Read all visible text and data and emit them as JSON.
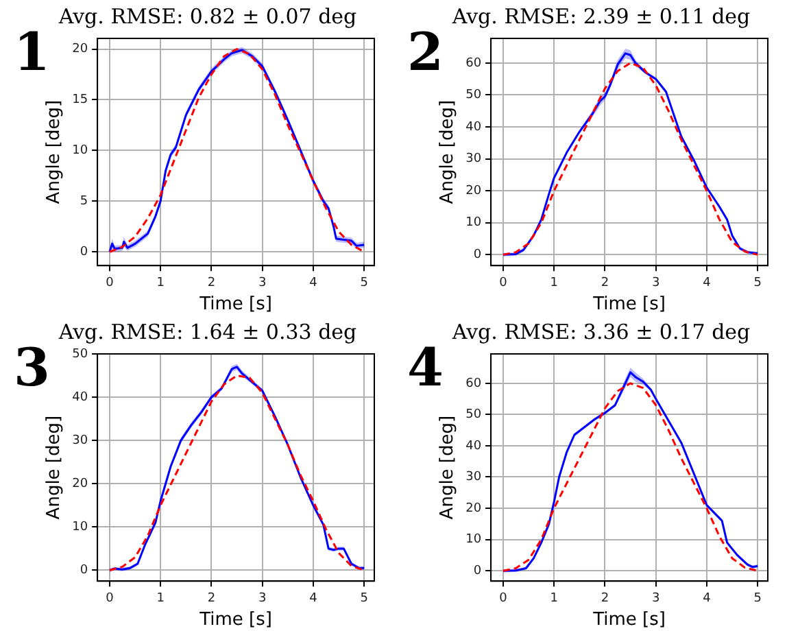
{
  "chart_data": [
    {
      "type": "line",
      "title": "Avg. RMSE: 0.82 ± 0.07 deg",
      "xlabel": "Time [s]",
      "ylabel": "Angle [deg]",
      "annotations": [
        "1"
      ],
      "xlim": [
        -0.24,
        5.2
      ],
      "ylim": [
        -1.35,
        21.05
      ],
      "xticks": [
        0,
        1,
        2,
        3,
        4,
        5
      ],
      "yticks": [
        0,
        5,
        10,
        15,
        20
      ],
      "grid": true,
      "series": [
        {
          "color": "#0000ff",
          "x": [
            0,
            0.05,
            0.1,
            0.25,
            0.28,
            0.35,
            0.5,
            0.75,
            0.9,
            1.0,
            1.1,
            1.2,
            1.3,
            1.5,
            1.75,
            2.0,
            2.25,
            2.4,
            2.6,
            2.8,
            3.0,
            3.25,
            3.5,
            3.75,
            4.0,
            4.2,
            4.3,
            4.4,
            4.45,
            4.6,
            4.75,
            4.85,
            5.0
          ],
          "values": [
            0,
            0.8,
            0.3,
            0.4,
            1.0,
            0.4,
            0.8,
            1.8,
            3.5,
            5.0,
            8,
            9.6,
            10.3,
            13.5,
            16,
            17.8,
            19.0,
            19.6,
            19.9,
            19.3,
            18.3,
            15.8,
            13,
            10,
            7,
            5,
            4.3,
            2.5,
            1.3,
            1.2,
            1.1,
            0.6,
            0.7
          ],
          "lower": [
            0,
            0.3,
            0,
            0.1,
            0.5,
            0.1,
            0.5,
            1.5,
            3.2,
            4.7,
            7.7,
            9.3,
            10.0,
            13.2,
            15.7,
            17.5,
            18.7,
            19.3,
            19.6,
            19.0,
            18.0,
            15.5,
            12.7,
            9.7,
            6.7,
            4.7,
            4.0,
            2.2,
            1.0,
            0.9,
            0.8,
            0.3,
            0.4
          ],
          "upper": [
            0.3,
            1.3,
            0.6,
            0.7,
            1.5,
            0.7,
            1.1,
            2.1,
            3.8,
            5.3,
            8.3,
            9.9,
            10.6,
            13.8,
            16.3,
            18.1,
            19.3,
            19.9,
            20.2,
            19.6,
            18.6,
            16.1,
            13.3,
            10.3,
            7.3,
            5.3,
            4.6,
            2.8,
            1.6,
            1.5,
            1.4,
            0.9,
            1.0
          ]
        },
        {
          "color": "#ff0000",
          "line_style": "dashed",
          "x": [
            0,
            0.25,
            0.5,
            0.75,
            1,
            1.25,
            1.5,
            1.75,
            2,
            2.25,
            2.5,
            2.75,
            3,
            3.25,
            3.5,
            3.75,
            4,
            4.25,
            4.5,
            4.75,
            5
          ],
          "values": [
            0,
            0.5,
            1.5,
            3.3,
            5.6,
            8.8,
            12,
            15.2,
            17.5,
            19.3,
            20,
            19.5,
            18,
            15.5,
            12.5,
            9.8,
            7,
            4.3,
            2,
            0.7,
            0
          ]
        }
      ]
    },
    {
      "type": "line",
      "title": "Avg. RMSE: 2.39 ± 0.11 deg",
      "xlabel": "Time [s]",
      "ylabel": "Angle [deg]",
      "annotations": [
        "2"
      ],
      "xlim": [
        -0.24,
        5.2
      ],
      "ylim": [
        -3.4,
        67.7
      ],
      "xticks": [
        0,
        1,
        2,
        3,
        4,
        5
      ],
      "yticks": [
        0,
        10,
        20,
        30,
        40,
        50,
        60
      ],
      "grid": true,
      "series": [
        {
          "color": "#0000ff",
          "x": [
            0,
            0.25,
            0.4,
            0.6,
            0.75,
            0.9,
            1,
            1.25,
            1.5,
            1.75,
            1.9,
            2,
            2.1,
            2.25,
            2.4,
            2.5,
            2.6,
            2.8,
            3,
            3.2,
            3.35,
            3.5,
            3.75,
            4,
            4.25,
            4.4,
            4.5,
            4.65,
            4.8,
            5
          ],
          "values": [
            0,
            0.2,
            1.5,
            6,
            11,
            19,
            24,
            32,
            38.5,
            44,
            48,
            49.5,
            53,
            59.5,
            63,
            62.5,
            60,
            57,
            55,
            51,
            44,
            37,
            29.5,
            21,
            15,
            11,
            6,
            2,
            0.8,
            0.4
          ],
          "lower": [
            -0.5,
            -0.3,
            1,
            5.5,
            10.5,
            18.5,
            23.5,
            31.5,
            38,
            43,
            46.5,
            48.5,
            52,
            58,
            61.5,
            61,
            59,
            56.5,
            54.5,
            50.5,
            43.5,
            36.5,
            29,
            20.5,
            14.5,
            10.5,
            5.5,
            1.5,
            0.3,
            -0.1
          ],
          "upper": [
            0.5,
            0.7,
            2,
            6.5,
            11.5,
            19.5,
            24.5,
            32.5,
            39,
            45,
            49.5,
            50.5,
            54,
            61,
            64.5,
            64,
            61,
            57.5,
            55.5,
            51.5,
            44.5,
            37.5,
            30,
            21.5,
            15.5,
            11.5,
            6.5,
            2.5,
            1.3,
            0.9
          ]
        },
        {
          "color": "#ff0000",
          "line_style": "dashed",
          "x": [
            0,
            0.25,
            0.5,
            0.75,
            1,
            1.25,
            1.5,
            1.75,
            2,
            2.25,
            2.5,
            2.75,
            3,
            3.25,
            3.5,
            3.75,
            4,
            4.25,
            4.5,
            4.75,
            5
          ],
          "values": [
            0,
            0.8,
            3.5,
            10,
            20,
            28,
            36,
            44,
            52,
            57.5,
            60,
            58.5,
            53,
            45,
            36,
            28,
            20,
            11,
            4,
            1,
            0
          ]
        }
      ]
    },
    {
      "type": "line",
      "title": "Avg. RMSE: 1.64 ± 0.33 deg",
      "xlabel": "Time [s]",
      "ylabel": "Angle [deg]",
      "annotations": [
        "3"
      ],
      "xlim": [
        -0.24,
        5.2
      ],
      "ylim": [
        -2.5,
        50
      ],
      "xticks": [
        0,
        1,
        2,
        3,
        4,
        5
      ],
      "yticks": [
        0,
        10,
        20,
        30,
        40,
        50
      ],
      "grid": true,
      "series": [
        {
          "color": "#0000ff",
          "x": [
            0,
            0.1,
            0.25,
            0.4,
            0.55,
            0.7,
            0.9,
            1,
            1.2,
            1.4,
            1.6,
            1.8,
            2,
            2.2,
            2.4,
            2.5,
            2.6,
            2.8,
            3,
            3.25,
            3.5,
            3.75,
            4,
            4.2,
            4.3,
            4.4,
            4.5,
            4.6,
            4.75,
            4.9,
            5
          ],
          "values": [
            0,
            0.4,
            0.2,
            0.5,
            1.5,
            6,
            11,
            16,
            24,
            30,
            33.5,
            36.5,
            40,
            42,
            46.5,
            47,
            45.5,
            43.5,
            41.5,
            35.5,
            29,
            21.5,
            15,
            10.5,
            5,
            4.7,
            5,
            5,
            1.5,
            0.5,
            0.5
          ],
          "lower": [
            -0.4,
            0,
            -0.2,
            0.1,
            1.1,
            5.6,
            10.6,
            15.6,
            23.6,
            29.4,
            32.9,
            35.9,
            39.5,
            41.5,
            45.8,
            46.3,
            44.8,
            43,
            41,
            35,
            28.6,
            21.1,
            14.6,
            10.1,
            4.6,
            4.3,
            4.6,
            4.6,
            1.1,
            0.1,
            0.1
          ],
          "upper": [
            0.4,
            0.8,
            0.6,
            0.9,
            1.9,
            6.4,
            11.4,
            16.4,
            24.4,
            30.6,
            34.1,
            37.1,
            40.5,
            42.5,
            47.2,
            47.7,
            46.2,
            44,
            42,
            36,
            29.4,
            21.9,
            15.4,
            10.9,
            5.4,
            5.1,
            5.4,
            5.4,
            1.9,
            0.9,
            0.9
          ]
        },
        {
          "color": "#ff0000",
          "line_style": "dashed",
          "x": [
            0,
            0.25,
            0.5,
            0.75,
            1,
            1.25,
            1.5,
            1.75,
            2,
            2.25,
            2.5,
            2.75,
            3,
            3.25,
            3.5,
            3.75,
            4,
            4.25,
            4.5,
            4.75,
            5
          ],
          "values": [
            0,
            0.8,
            3,
            8,
            15,
            21,
            27,
            33,
            39,
            43,
            45,
            44.5,
            41,
            35,
            29,
            22,
            16,
            9.5,
            4,
            1,
            0
          ]
        }
      ]
    },
    {
      "type": "line",
      "title": "Avg. RMSE: 3.36 ± 0.17 deg",
      "xlabel": "Time [s]",
      "ylabel": "Angle [deg]",
      "annotations": [
        "4"
      ],
      "xlim": [
        -0.24,
        5.2
      ],
      "ylim": [
        -3.3,
        69.4
      ],
      "xticks": [
        0,
        1,
        2,
        3,
        4,
        5
      ],
      "yticks": [
        0,
        10,
        20,
        30,
        40,
        50,
        60
      ],
      "grid": true,
      "series": [
        {
          "color": "#0000ff",
          "x": [
            0,
            0.25,
            0.45,
            0.6,
            0.75,
            0.9,
            1,
            1.1,
            1.25,
            1.4,
            1.6,
            1.8,
            2,
            2.2,
            2.4,
            2.5,
            2.6,
            2.75,
            2.9,
            3,
            3.25,
            3.5,
            3.75,
            4,
            4.15,
            4.3,
            4.4,
            4.6,
            4.8,
            4.9,
            5
          ],
          "values": [
            0,
            0.1,
            0.8,
            4,
            9,
            15,
            22,
            30,
            38,
            43.5,
            46,
            48.5,
            50.5,
            53,
            60,
            63.5,
            62,
            60.5,
            58,
            55,
            48,
            41,
            31,
            21,
            18.5,
            16,
            9,
            5,
            2,
            1.2,
            1.5
          ],
          "lower": [
            -0.5,
            -0.4,
            0.3,
            3.5,
            8.5,
            14.5,
            21.5,
            29.5,
            37.5,
            43,
            45.5,
            48,
            50,
            52.5,
            58.5,
            62,
            60.5,
            59.5,
            57.5,
            54.5,
            47.5,
            40.5,
            30.5,
            20.5,
            18,
            15.5,
            8.5,
            4.5,
            1.5,
            0.7,
            1
          ],
          "upper": [
            0.5,
            0.6,
            1.3,
            4.5,
            9.5,
            15.5,
            22.5,
            30.5,
            38.5,
            44,
            46.5,
            49,
            51,
            53.5,
            61.5,
            65,
            63.5,
            61.5,
            58.5,
            55.5,
            48.5,
            41.5,
            31.5,
            21.5,
            19,
            16.5,
            9.5,
            5.5,
            2.5,
            1.7,
            2
          ]
        },
        {
          "color": "#ff0000",
          "line_style": "dashed",
          "x": [
            0,
            0.25,
            0.5,
            0.75,
            1,
            1.25,
            1.5,
            1.75,
            2,
            2.25,
            2.5,
            2.75,
            3,
            3.25,
            3.5,
            3.75,
            4,
            4.25,
            4.5,
            4.75,
            5
          ],
          "values": [
            0,
            0.8,
            3.5,
            10,
            20,
            28,
            36,
            44,
            52,
            57.5,
            60,
            58.5,
            53,
            45,
            36,
            28,
            20,
            11,
            4,
            1,
            0
          ]
        }
      ]
    }
  ]
}
